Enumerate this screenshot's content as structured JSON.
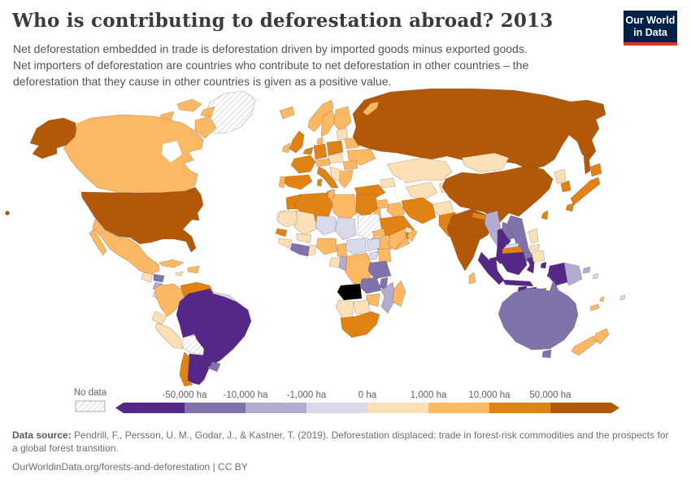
{
  "header": {
    "title": "Who is contributing to deforestation abroad? 2013",
    "subtitle_lines": [
      "Net deforestation embedded in trade is deforestation driven by imported goods minus exported goods.",
      "Net importers of deforestation are countries who contribute to net deforestation in other countries – the",
      "deforestation that they cause in other countries is given as a positive value."
    ],
    "logo": {
      "line1": "Our World",
      "line2": "in Data",
      "bg": "#002147",
      "accent": "#dc3627"
    }
  },
  "legend": {
    "no_data_label": "No data",
    "tick_labels": [
      "-50,000 ha",
      "-10,000 ha",
      "-1,000 ha",
      "0 ha",
      "1,000 ha",
      "10,000 ha",
      "50,000 ha"
    ],
    "bin_colors": [
      "#542788",
      "#8073ac",
      "#b2abd2",
      "#d8daeb",
      "#fee0b6",
      "#fdb863",
      "#e08214",
      "#b35806"
    ]
  },
  "footer": {
    "source_label": "Data source:",
    "source_text": " Pendrill, F., Persson, U. M., Godar, J., & Kastner, T. (2019). Deforestation displaced: trade in forest-risk commodities and the prospects for a global forest transition.",
    "link_text": "OurWorldinData.org/forests-and-deforestation",
    "license_sep": " | ",
    "license": "CC BY"
  },
  "map": {
    "countries": {
      "greenland": "no-data",
      "canada": 5,
      "canada-arctic": 5,
      "united-states": 7,
      "mexico": 5,
      "guatemala": 4,
      "honduras": 1,
      "nicaragua": 2,
      "costa-rica": 3,
      "panama": 4,
      "cuba": 5,
      "haiti-dominican-republic": 5,
      "jamaica": 4,
      "colombia": 5,
      "venezuela": 6,
      "guianas": 3,
      "ecuador": 4,
      "peru": 4,
      "bolivia": "no-data",
      "brazil": 0,
      "uruguay": 1,
      "argentina": 0,
      "chile": 6,
      "iceland": 5,
      "norway": 5,
      "sweden": 5,
      "finland": 5,
      "united-kingdom": 6,
      "ireland": 5,
      "denmark": 5,
      "benelux": 6,
      "germany": 6,
      "poland": 6,
      "baltic-states": 4,
      "belarus": 5,
      "ukraine": 5,
      "france": 6,
      "spain": 6,
      "portugal": 5,
      "switzerland-austria": 5,
      "czechia-hungary": 4,
      "italy": 6,
      "romania": 5,
      "western-balkans": 4,
      "greece-bulgaria": 5,
      "russia": 7,
      "novaya-zemlya": 5,
      "kazakhstan": 4,
      "turkmenistan-uzbekistan": 4,
      "kyrgyzstan-tajikistan": 4,
      "caucasus": 4,
      "turkey": 6,
      "syria": 5,
      "iraq": 5,
      "israel-jordan": 5,
      "saudi-arabia": 6,
      "yemen": 5,
      "oman": 5,
      "uae": 4,
      "iran": 6,
      "afghanistan": 4,
      "pakistan": 6,
      "india": 7,
      "nepal": 6,
      "bhutan": 5,
      "bangladesh": 6,
      "sri-lanka": 5,
      "mongolia": 4,
      "china": 7,
      "north-korea": 4,
      "south-korea": 6,
      "japan": 6,
      "taiwan": 6,
      "myanmar": 2,
      "thailand": 0,
      "laos": 1,
      "vietnam": 1,
      "cambodia": 3,
      "malaysia": 0,
      "east-malaysia": 6,
      "indonesia": 0,
      "timor-leste": 6,
      "philippines": 4,
      "papua-new-guinea": 2,
      "new-britain": 2,
      "solomon-islands": 3,
      "vanuatu": 5,
      "new-caledonia": 5,
      "fiji": 3,
      "australia": 1,
      "new-zealand": 5,
      "western-sahara": "no-data",
      "morocco": 6,
      "algeria": 6,
      "tunisia": 5,
      "libya": 5,
      "egypt": 6,
      "mauritania": 4,
      "mali": 4,
      "niger": 3,
      "chad": 3,
      "sudan": "no-data",
      "eritrea": 5,
      "ethiopia": 5,
      "somalia": 5,
      "senegal": 6,
      "guinea": 4,
      "burkina-faso": 4,
      "ivory-coast": 1,
      "ghana": 1,
      "togo-benin": 4,
      "nigeria": 5,
      "cameroon": 5,
      "central-african-republic": 3,
      "south-sudan": 3,
      "gabon": 4,
      "congo": 2,
      "drc": 5,
      "uganda": 3,
      "kenya": 5,
      "tanzania": 1,
      "zambia": 1,
      "malawi": 1,
      "mozambique": 2,
      "zimbabwe": 5,
      "botswana": 4,
      "namibia": 4,
      "south-africa": 6,
      "madagascar": 5
    }
  }
}
